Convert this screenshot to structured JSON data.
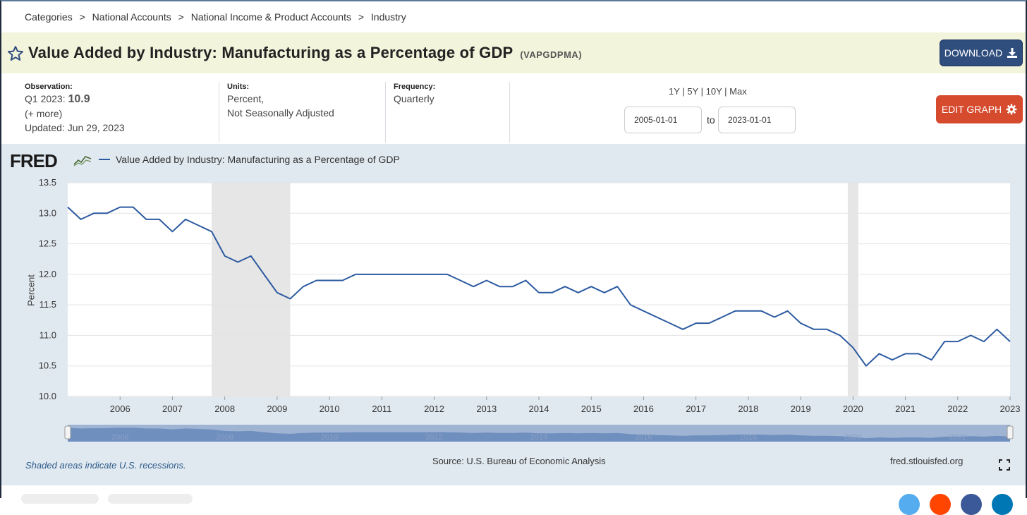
{
  "breadcrumb": [
    "Categories",
    ">",
    "National Accounts",
    ">",
    "National Income & Product Accounts",
    ">",
    "Industry"
  ],
  "header": {
    "title": "Value Added by Industry: Manufacturing as a Percentage of GDP",
    "series_code": "(VAPGDPMA)",
    "download_label": "DOWNLOAD"
  },
  "meta": {
    "observation_label": "Observation:",
    "observation_period": "Q1 2023:",
    "observation_value": "10.9",
    "more": "(+ more)",
    "updated": "Updated: Jun 29, 2023",
    "units_label": "Units:",
    "units_line1": "Percent,",
    "units_line2": "Not Seasonally Adjusted",
    "frequency_label": "Frequency:",
    "frequency_value": "Quarterly"
  },
  "range": {
    "r1y": "1Y",
    "r5y": "5Y",
    "r10y": "10Y",
    "rmax": "Max",
    "sep": "|",
    "start": "2005-01-01",
    "to": "to",
    "end": "2023-01-01",
    "edit_label": "EDIT GRAPH"
  },
  "chart_meta": {
    "logo": "FRED",
    "legend": "Value Added by Industry: Manufacturing as a Percentage of GDP",
    "shaded_note": "Shaded areas indicate U.S. recessions.",
    "source": "Source: U.S. Bureau of Economic Analysis",
    "url": "fred.stlouisfed.org"
  },
  "colors": {
    "line": "#2c5aa0",
    "recession": "#e6e6e6",
    "download": "#2f4d7d",
    "edit": "#d64a2e",
    "title_bg": "#f3f4dc",
    "chart_bg": "#e1e9f0"
  },
  "chart_data": {
    "type": "line",
    "title": "Value Added by Industry: Manufacturing as a Percentage of GDP",
    "ylabel": "Percent",
    "xlabel": "",
    "ylim": [
      10.0,
      13.5
    ],
    "xlim": [
      2005.0,
      2023.0
    ],
    "yticks": [
      "10.0",
      "10.5",
      "11.0",
      "11.5",
      "12.0",
      "12.5",
      "13.0",
      "13.5"
    ],
    "xticks": [
      "2006",
      "2007",
      "2008",
      "2009",
      "2010",
      "2011",
      "2012",
      "2013",
      "2014",
      "2015",
      "2016",
      "2017",
      "2018",
      "2019",
      "2020",
      "2021",
      "2022",
      "2023"
    ],
    "navigator_labels": [
      "2006",
      "2008",
      "2010",
      "2012",
      "2014",
      "2016",
      "2018",
      "2020",
      "2022"
    ],
    "recessions": [
      [
        2007.75,
        2009.25
      ],
      [
        2019.9,
        2020.1
      ]
    ],
    "series": [
      {
        "name": "Value Added by Industry: Manufacturing as a Percentage of GDP",
        "x": [
          2005.0,
          2005.25,
          2005.5,
          2005.75,
          2006.0,
          2006.25,
          2006.5,
          2006.75,
          2007.0,
          2007.25,
          2007.5,
          2007.75,
          2008.0,
          2008.25,
          2008.5,
          2008.75,
          2009.0,
          2009.25,
          2009.5,
          2009.75,
          2010.0,
          2010.25,
          2010.5,
          2010.75,
          2011.0,
          2011.25,
          2011.5,
          2011.75,
          2012.0,
          2012.25,
          2012.5,
          2012.75,
          2013.0,
          2013.25,
          2013.5,
          2013.75,
          2014.0,
          2014.25,
          2014.5,
          2014.75,
          2015.0,
          2015.25,
          2015.5,
          2015.75,
          2016.0,
          2016.25,
          2016.5,
          2016.75,
          2017.0,
          2017.25,
          2017.5,
          2017.75,
          2018.0,
          2018.25,
          2018.5,
          2018.75,
          2019.0,
          2019.25,
          2019.5,
          2019.75,
          2020.0,
          2020.25,
          2020.5,
          2020.75,
          2021.0,
          2021.25,
          2021.5,
          2021.75,
          2022.0,
          2022.25,
          2022.5,
          2022.75,
          2023.0
        ],
        "values": [
          13.1,
          12.9,
          13.0,
          13.0,
          13.1,
          13.1,
          12.9,
          12.9,
          12.7,
          12.9,
          12.8,
          12.7,
          12.3,
          12.2,
          12.3,
          12.0,
          11.7,
          11.6,
          11.8,
          11.9,
          11.9,
          11.9,
          12.0,
          12.0,
          12.0,
          12.0,
          12.0,
          12.0,
          12.0,
          12.0,
          11.9,
          11.8,
          11.9,
          11.8,
          11.8,
          11.9,
          11.7,
          11.7,
          11.8,
          11.7,
          11.8,
          11.7,
          11.8,
          11.5,
          11.4,
          11.3,
          11.2,
          11.1,
          11.2,
          11.2,
          11.3,
          11.4,
          11.4,
          11.4,
          11.3,
          11.4,
          11.2,
          11.1,
          11.1,
          11.0,
          10.8,
          10.5,
          10.7,
          10.6,
          10.7,
          10.7,
          10.6,
          10.9,
          10.9,
          11.0,
          10.9,
          11.1,
          10.9
        ]
      }
    ]
  }
}
